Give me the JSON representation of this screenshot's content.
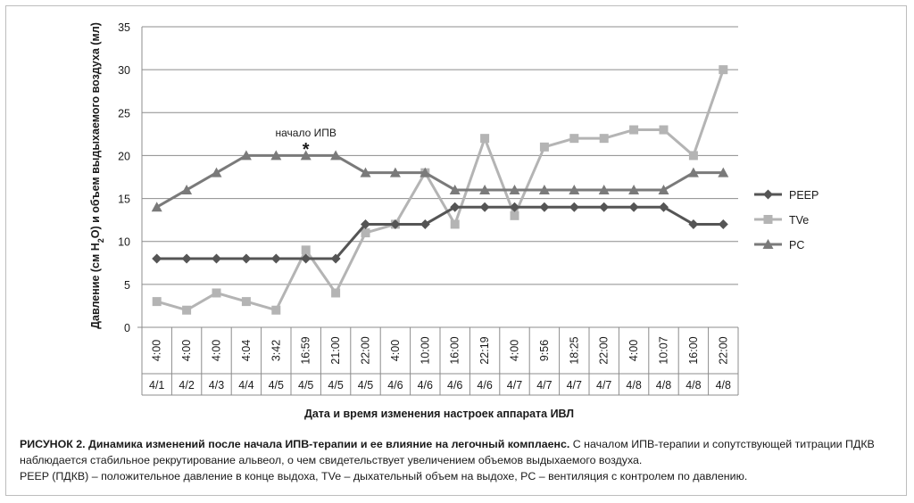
{
  "chart_data": {
    "type": "line",
    "ylabel_parts": [
      "Давление (см H",
      "2",
      "O) и объем выдыхаемого воздуха (мл)"
    ],
    "xlabel": "Дата и время изменения настроек аппарата ИВЛ",
    "ylim": [
      0,
      35
    ],
    "yticks": [
      0,
      5,
      10,
      15,
      20,
      25,
      30,
      35
    ],
    "grid": true,
    "legend": "right",
    "times": [
      "4:00",
      "4:00",
      "4:00",
      "4:04",
      "3:42",
      "16:59",
      "21:00",
      "22:00",
      "4:00",
      "10:00",
      "16:00",
      "22:19",
      "4:00",
      "9:56",
      "18:25",
      "22:00",
      "4:00",
      "10:07",
      "16:00",
      "22:00"
    ],
    "dates": [
      "4/1",
      "4/2",
      "4/3",
      "4/4",
      "4/5",
      "4/5",
      "4/5",
      "4/5",
      "4/6",
      "4/6",
      "4/6",
      "4/6",
      "4/7",
      "4/7",
      "4/7",
      "4/7",
      "4/8",
      "4/8",
      "4/8",
      "4/8"
    ],
    "series": [
      {
        "name": "PEEP",
        "marker": "diamond",
        "color": "#555555",
        "values": [
          8,
          8,
          8,
          8,
          8,
          8,
          8,
          12,
          12,
          12,
          14,
          14,
          14,
          14,
          14,
          14,
          14,
          14,
          12,
          12
        ]
      },
      {
        "name": "TVe",
        "marker": "square",
        "color": "#b4b4b4",
        "values": [
          3,
          2,
          4,
          3,
          2,
          9,
          4,
          11,
          12,
          18,
          12,
          22,
          13,
          21,
          22,
          22,
          23,
          23,
          20,
          30
        ]
      },
      {
        "name": "PC",
        "marker": "triangle",
        "color": "#7a7a7a",
        "values": [
          14,
          16,
          18,
          20,
          20,
          20,
          20,
          18,
          18,
          18,
          16,
          16,
          16,
          16,
          16,
          16,
          16,
          16,
          18,
          18
        ]
      }
    ],
    "annotation": {
      "text": "начало ИПВ",
      "mark": "*",
      "index": 5,
      "value": 20
    }
  },
  "caption": {
    "bold": "РИСУНОК 2. Динамика изменений после начала ИПВ-терапии и ее влияние на легочный комплаенс.",
    "line1_rest": " С началом ИПВ-терапии и сопутствующей титрации ПДКВ наблюдается стабильное рекрутирование альвеол, о чем свидетельствует увеличением объемов выдыхаемого воздуха.",
    "line2": "PEEP (ПДКВ) – положительное давление в конце выдоха, TVe – дыхательный объем на выдохе, PC – вентиляция с контролем по давлению."
  }
}
